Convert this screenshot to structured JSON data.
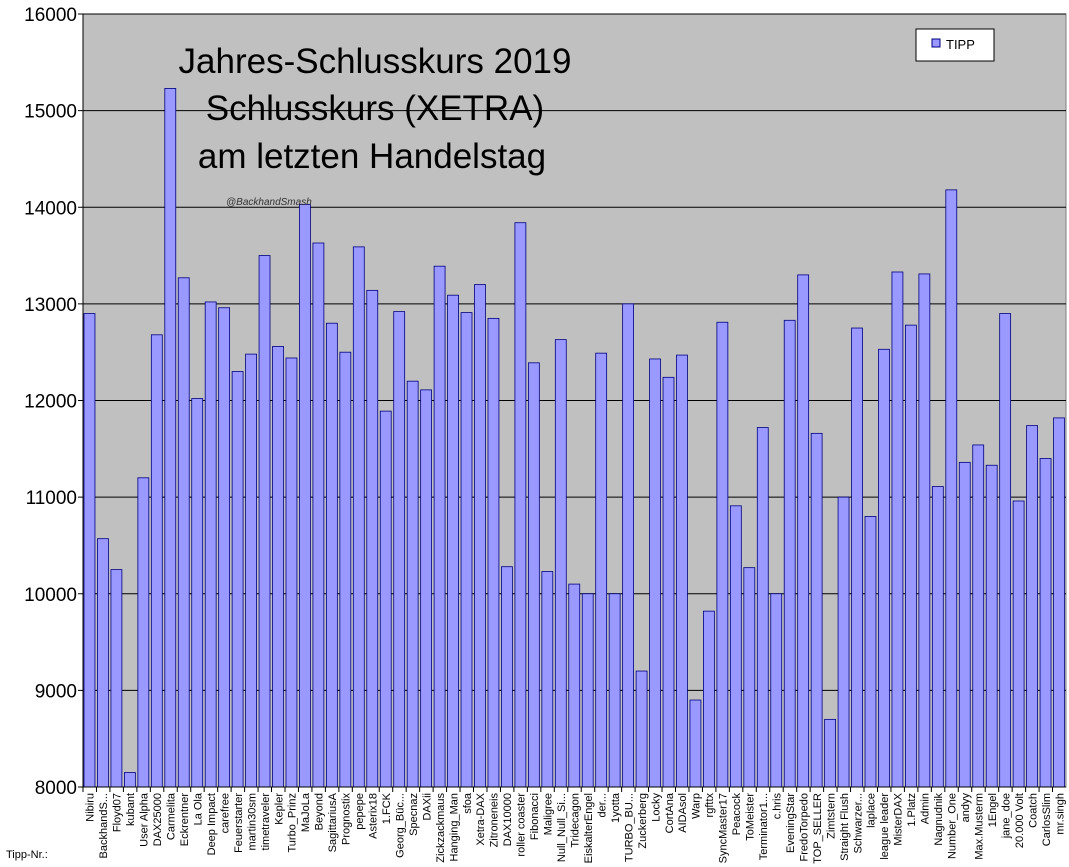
{
  "chart_data": {
    "type": "bar",
    "title_lines": [
      "Jahres-Schlusskurs 2019",
      "Schlusskurs (XETRA)",
      "am letzten Handelstag"
    ],
    "watermark": "@BackhandSmash",
    "xlabel": "Tipp-Nr.:",
    "ylabel": "",
    "ylim": [
      8000,
      16000
    ],
    "yticks": [
      8000,
      9000,
      10000,
      11000,
      12000,
      13000,
      14000,
      15000,
      16000
    ],
    "grid": true,
    "legend": {
      "position": "top-right",
      "entries": [
        "TIPP"
      ]
    },
    "colors": {
      "bar": "#9999ff",
      "plot_background": "#c0c0c0",
      "bar_edge": "#000080"
    },
    "categories": [
      "Nibiru",
      "BackhandS...",
      "Floyd07",
      "kubant",
      "User Alpha",
      "DAX25000",
      "Carmelita",
      "Eckrentner",
      "La Ola",
      "Deep Impact",
      "carefree",
      "Feuerstarter",
      "martin30sm",
      "timetraveler",
      "Kepler",
      "Turbo_Prinz",
      "MaJoLa",
      "Beyond",
      "SagittariusA",
      "Prognostix",
      "pepepe",
      "Asterix18",
      "1.FCK",
      "Georg_Büc...",
      "Specnaz",
      "DAXii",
      "Zickzackmaus",
      "Hanging_Man",
      "sfoa",
      "Xetra-DAX",
      "Zitroneneis",
      "DAX10000",
      "roller coaster",
      "Fibonacci",
      "Maligree",
      "Null_Null_Si...",
      "Tridecagon",
      "EiskalterEngel",
      "der...",
      "1yotta",
      "TURBO_BU...",
      "Zuckerberg",
      "Locky",
      "CortAna",
      "AIDAsol",
      "Warp",
      "rgfttx",
      "SyncMaster17",
      "Peacock",
      "ToMeister",
      "Terminator1...",
      "c.hris",
      "EveningStar",
      "FredoTorpedo",
      "TOP_SELLER",
      "Zimtstern",
      "Straight Flush",
      "Schwarzer...",
      "laplace",
      "league leader",
      "MisterDAX",
      "1.Platz",
      "Admin",
      "Nagnudnik",
      "Number_One",
      "andyy",
      "Max.Musterm",
      "1Engel",
      "jane_doe",
      "20.000 Volt",
      "Coatch",
      "CarlosSlim",
      "mr.singh"
    ],
    "series": [
      {
        "name": "TIPP",
        "values": [
          12900,
          10570,
          10250,
          8150,
          11200,
          12680,
          15230,
          13270,
          12020,
          13020,
          12960,
          12300,
          12480,
          13500,
          12560,
          12440,
          14030,
          13630,
          12800,
          12500,
          13590,
          13140,
          11890,
          12920,
          12200,
          12110,
          13390,
          13090,
          12910,
          13200,
          12850,
          10280,
          13840,
          12390,
          10230,
          12630,
          10100,
          10000,
          12490,
          10000,
          13000,
          9200,
          12430,
          12240,
          12470,
          8900,
          9820,
          12810,
          10910,
          10270,
          11720,
          10000,
          12830,
          13300,
          11660,
          8700,
          11000,
          12750,
          10800,
          12530,
          13330,
          12780,
          13310,
          11110,
          14180,
          11360,
          11540,
          11330,
          12900,
          10960,
          11740,
          11400,
          11820
        ]
      }
    ]
  }
}
